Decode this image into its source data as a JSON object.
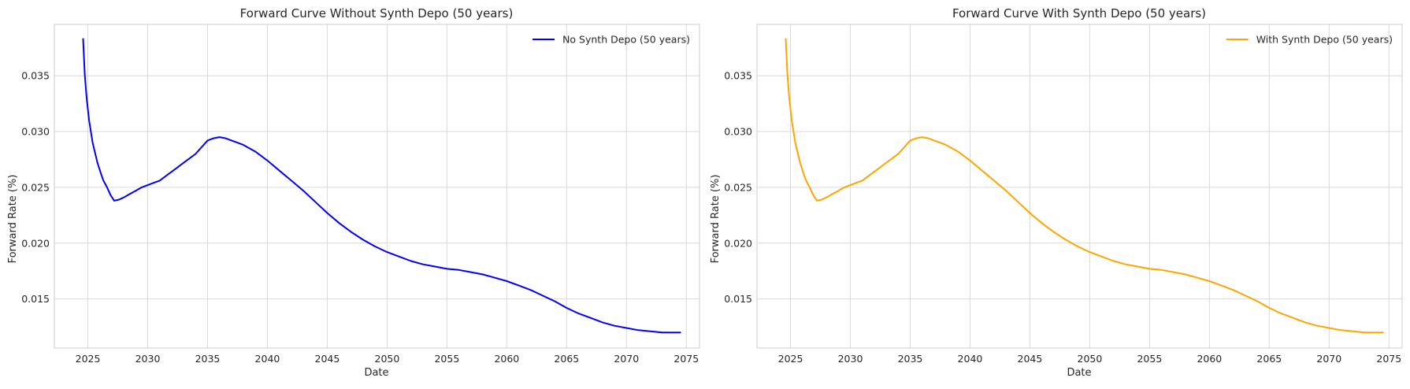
{
  "chart_data": [
    {
      "type": "line",
      "title": "Forward Curve Without Synth Depo (50 years)",
      "xlabel": "Date",
      "ylabel": "Forward Rate (%)",
      "xlim": [
        2022.2,
        2076.1
      ],
      "ylim": [
        0.0106,
        0.0396
      ],
      "xticks": [
        2025,
        2030,
        2035,
        2040,
        2045,
        2050,
        2055,
        2060,
        2065,
        2070,
        2075
      ],
      "xtick_labels": [
        "2025",
        "2030",
        "2035",
        "2040",
        "2045",
        "2050",
        "2055",
        "2060",
        "2065",
        "2070",
        "2075"
      ],
      "yticks": [
        0.015,
        0.02,
        0.025,
        0.03,
        0.035
      ],
      "ytick_labels": [
        "0.015",
        "0.020",
        "0.025",
        "0.030",
        "0.035"
      ],
      "grid": true,
      "legend": "top-right",
      "series": [
        {
          "name": "No Synth Depo (50 years)",
          "color": "#0000ff",
          "x": [
            2024.6,
            2024.75,
            2024.9,
            2025.1,
            2025.4,
            2025.8,
            2026.1,
            2026.3,
            2026.6,
            2026.9,
            2027.2,
            2027.6,
            2028.0,
            2028.5,
            2029.0,
            2029.5,
            2030.0,
            2030.5,
            2031.0,
            2031.5,
            2032.0,
            2032.5,
            2033.0,
            2033.5,
            2034.0,
            2034.5,
            2035.0,
            2035.5,
            2036.0,
            2036.5,
            2037.0,
            2037.5,
            2038.0,
            2039.0,
            2040.0,
            2041.0,
            2042.0,
            2043.0,
            2044.0,
            2045.0,
            2046.0,
            2047.0,
            2048.0,
            2049.0,
            2050.0,
            2051.0,
            2052.0,
            2053.0,
            2054.0,
            2055.0,
            2056.0,
            2057.0,
            2058.0,
            2059.0,
            2060.0,
            2061.0,
            2062.0,
            2063.0,
            2064.0,
            2065.0,
            2066.0,
            2067.0,
            2068.0,
            2069.0,
            2070.0,
            2071.0,
            2072.0,
            2073.0,
            2074.0,
            2074.5
          ],
          "y": [
            0.0383,
            0.035,
            0.033,
            0.031,
            0.029,
            0.0272,
            0.0262,
            0.0256,
            0.025,
            0.0243,
            0.0238,
            0.0239,
            0.0241,
            0.0244,
            0.0247,
            0.025,
            0.0252,
            0.0254,
            0.0256,
            0.026,
            0.0264,
            0.0268,
            0.0272,
            0.0276,
            0.028,
            0.0286,
            0.0292,
            0.0294,
            0.0295,
            0.0294,
            0.0292,
            0.029,
            0.0288,
            0.0282,
            0.0274,
            0.0265,
            0.0256,
            0.0247,
            0.0237,
            0.0227,
            0.0218,
            0.021,
            0.0203,
            0.0197,
            0.0192,
            0.0188,
            0.0184,
            0.0181,
            0.0179,
            0.0177,
            0.0176,
            0.0174,
            0.0172,
            0.0169,
            0.0166,
            0.0162,
            0.0158,
            0.0153,
            0.0148,
            0.0142,
            0.0137,
            0.0133,
            0.0129,
            0.0126,
            0.0124,
            0.0122,
            0.0121,
            0.012,
            0.012,
            0.012
          ]
        }
      ]
    },
    {
      "type": "line",
      "title": "Forward Curve With Synth Depo (50 years)",
      "xlabel": "Date",
      "ylabel": "Forward Rate (%)",
      "xlim": [
        2022.2,
        2076.1
      ],
      "ylim": [
        0.0106,
        0.0396
      ],
      "xticks": [
        2025,
        2030,
        2035,
        2040,
        2045,
        2050,
        2055,
        2060,
        2065,
        2070,
        2075
      ],
      "xtick_labels": [
        "2025",
        "2030",
        "2035",
        "2040",
        "2045",
        "2050",
        "2055",
        "2060",
        "2065",
        "2070",
        "2075"
      ],
      "yticks": [
        0.015,
        0.02,
        0.025,
        0.03,
        0.035
      ],
      "ytick_labels": [
        "0.015",
        "0.020",
        "0.025",
        "0.030",
        "0.035"
      ],
      "grid": true,
      "legend": "top-right",
      "series": [
        {
          "name": "With Synth Depo (50 years)",
          "color": "#ffa500",
          "x": [
            2024.6,
            2024.75,
            2024.9,
            2025.1,
            2025.4,
            2025.8,
            2026.1,
            2026.3,
            2026.6,
            2026.9,
            2027.2,
            2027.6,
            2028.0,
            2028.5,
            2029.0,
            2029.5,
            2030.0,
            2030.5,
            2031.0,
            2031.5,
            2032.0,
            2032.5,
            2033.0,
            2033.5,
            2034.0,
            2034.5,
            2035.0,
            2035.5,
            2036.0,
            2036.5,
            2037.0,
            2037.5,
            2038.0,
            2039.0,
            2040.0,
            2041.0,
            2042.0,
            2043.0,
            2044.0,
            2045.0,
            2046.0,
            2047.0,
            2048.0,
            2049.0,
            2050.0,
            2051.0,
            2052.0,
            2053.0,
            2054.0,
            2055.0,
            2056.0,
            2057.0,
            2058.0,
            2059.0,
            2060.0,
            2061.0,
            2062.0,
            2063.0,
            2064.0,
            2065.0,
            2066.0,
            2067.0,
            2068.0,
            2069.0,
            2070.0,
            2071.0,
            2072.0,
            2073.0,
            2074.0,
            2074.5
          ],
          "y": [
            0.0383,
            0.035,
            0.033,
            0.031,
            0.029,
            0.0272,
            0.0262,
            0.0256,
            0.025,
            0.0243,
            0.0238,
            0.0239,
            0.0241,
            0.0244,
            0.0247,
            0.025,
            0.0252,
            0.0254,
            0.0256,
            0.026,
            0.0264,
            0.0268,
            0.0272,
            0.0276,
            0.028,
            0.0286,
            0.0292,
            0.0294,
            0.0295,
            0.0294,
            0.0292,
            0.029,
            0.0288,
            0.0282,
            0.0274,
            0.0265,
            0.0256,
            0.0247,
            0.0237,
            0.0227,
            0.0218,
            0.021,
            0.0203,
            0.0197,
            0.0192,
            0.0188,
            0.0184,
            0.0181,
            0.0179,
            0.0177,
            0.0176,
            0.0174,
            0.0172,
            0.0169,
            0.0166,
            0.0162,
            0.0158,
            0.0153,
            0.0148,
            0.0142,
            0.0137,
            0.0133,
            0.0129,
            0.0126,
            0.0124,
            0.0122,
            0.0121,
            0.012,
            0.012,
            0.012
          ]
        }
      ]
    }
  ]
}
